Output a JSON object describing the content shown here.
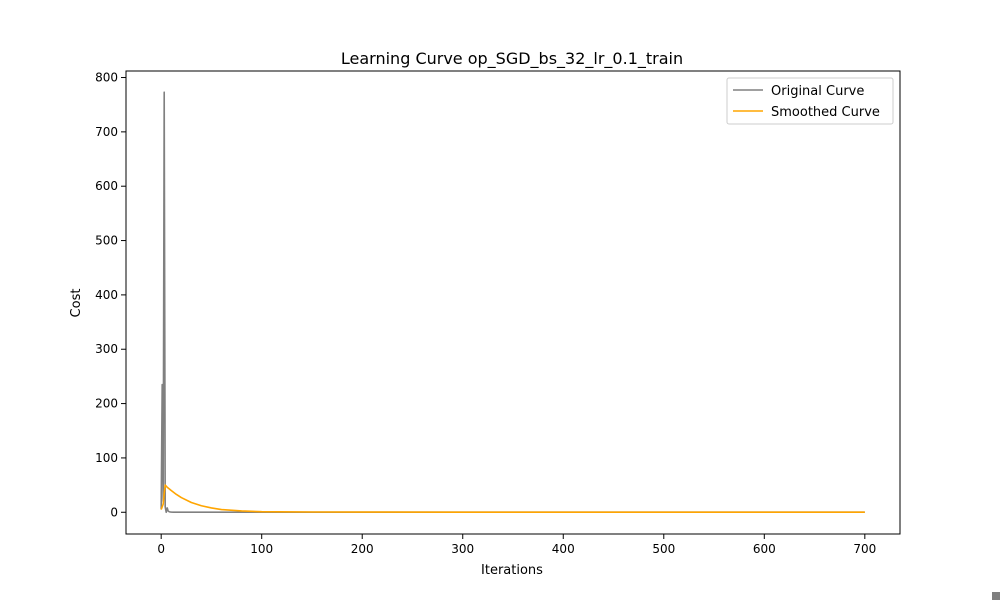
{
  "chart_data": {
    "type": "line",
    "title": "Learning Curve op_SGD_bs_32_lr_0.1_train",
    "xlabel": "Iterations",
    "ylabel": "Cost",
    "xlim": [
      -35,
      735
    ],
    "ylim": [
      -40,
      812
    ],
    "xticks": [
      0,
      100,
      200,
      300,
      400,
      500,
      600,
      700
    ],
    "yticks": [
      0,
      100,
      200,
      300,
      400,
      500,
      600,
      700,
      800
    ],
    "grid": false,
    "legend": "top-right",
    "colors": {
      "original": "#808080",
      "smoothed": "#ffa500"
    },
    "series": [
      {
        "name": "Original Curve",
        "x": [
          0,
          1,
          2,
          3,
          4,
          5,
          6,
          7,
          8,
          9,
          10,
          12,
          15,
          20,
          30,
          50,
          100,
          200,
          300,
          400,
          500,
          600,
          700
        ],
        "y": [
          5,
          235,
          20,
          773,
          10,
          0,
          8,
          2,
          1,
          0.5,
          0.3,
          0.2,
          0.1,
          0.1,
          0.1,
          0.1,
          0.1,
          0.1,
          0.1,
          0.1,
          0.1,
          0.1,
          0.1
        ]
      },
      {
        "name": "Smoothed Curve",
        "x": [
          0,
          1,
          2,
          3,
          4,
          6,
          8,
          10,
          15,
          20,
          30,
          40,
          50,
          60,
          80,
          100,
          150,
          200,
          300,
          400,
          500,
          600,
          700
        ],
        "y": [
          5,
          10,
          15,
          35,
          50,
          46,
          43,
          40,
          33,
          27,
          18,
          12,
          8,
          5,
          2.5,
          1,
          0.5,
          0.3,
          0.2,
          0.1,
          0.1,
          0.1,
          0.1
        ]
      }
    ]
  }
}
